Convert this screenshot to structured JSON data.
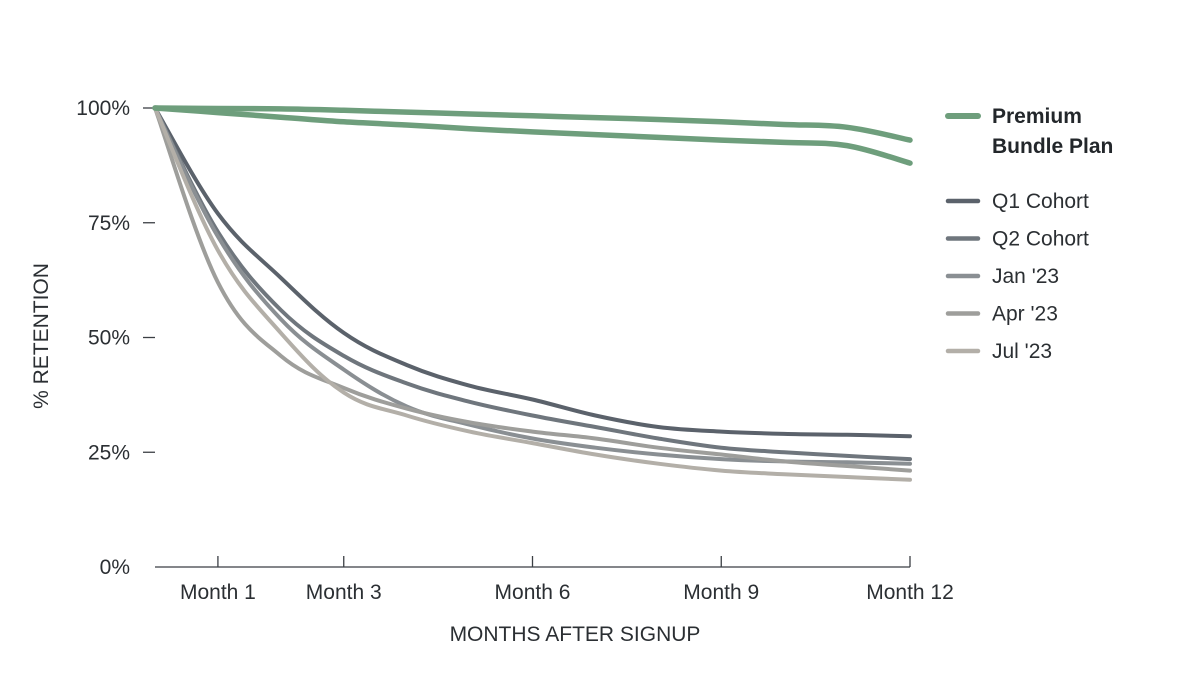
{
  "chart_data": {
    "type": "line",
    "xlabel": "MONTHS AFTER SIGNUP",
    "ylabel": "% RETENTION",
    "x": [
      0,
      1,
      2,
      3,
      4,
      5,
      6,
      7,
      8,
      9,
      10,
      11,
      12
    ],
    "x_tick_values": [
      1,
      3,
      6,
      9,
      12
    ],
    "x_tick_labels": [
      "Month 1",
      "Month 3",
      "Month 6",
      "Month 9",
      "Month 12"
    ],
    "xlim": [
      0,
      12
    ],
    "y_tick_values": [
      0,
      25,
      50,
      75,
      100
    ],
    "y_tick_labels": [
      "0%",
      "25%",
      "50%",
      "75%",
      "100%"
    ],
    "ylim": [
      0,
      100
    ],
    "grid": false,
    "legend_position": "right",
    "highlight": {
      "label": "Premium Bundle Plan",
      "color": "#6e9e7c"
    },
    "series": [
      {
        "name": "Premium Bundle Plan",
        "color": "#6e9e7c",
        "highlight": true,
        "values": [
          100,
          99.9,
          99.8,
          99.5,
          99.1,
          98.7,
          98.3,
          97.9,
          97.5,
          97,
          96.4,
          95.8,
          93
        ]
      },
      {
        "name": "Premium Bundle Plan",
        "color": "#6e9e7c",
        "highlight": true,
        "show_in_legend": false,
        "values": [
          100,
          99,
          98,
          97,
          96.3,
          95.5,
          94.8,
          94.2,
          93.6,
          93,
          92.5,
          91.8,
          88
        ]
      },
      {
        "name": "Q1 Cohort",
        "color": "#5b626b",
        "values": [
          100,
          77,
          63,
          51,
          44,
          39.5,
          36.5,
          33,
          30.5,
          29.5,
          29,
          28.8,
          28.5
        ]
      },
      {
        "name": "Q2 Cohort",
        "color": "#6f767d",
        "values": [
          100,
          73,
          56,
          46,
          40,
          36,
          33,
          30.5,
          28,
          26,
          25,
          24.2,
          23.5
        ]
      },
      {
        "name": "Jan '23",
        "color": "#8a8f93",
        "values": [
          100,
          72,
          54,
          43,
          35,
          31,
          28,
          26,
          24.5,
          23.5,
          23,
          22.8,
          22.5
        ]
      },
      {
        "name": "Apr '23",
        "color": "#9e9e9b",
        "values": [
          100,
          62,
          46,
          39,
          34.5,
          31.5,
          29.5,
          28,
          26,
          24.5,
          23,
          22,
          21
        ]
      },
      {
        "name": "Jul '23",
        "color": "#b3afa8",
        "values": [
          100,
          69,
          51,
          38,
          33,
          29.5,
          27,
          24.5,
          22.5,
          21,
          20.2,
          19.6,
          19
        ]
      }
    ]
  }
}
